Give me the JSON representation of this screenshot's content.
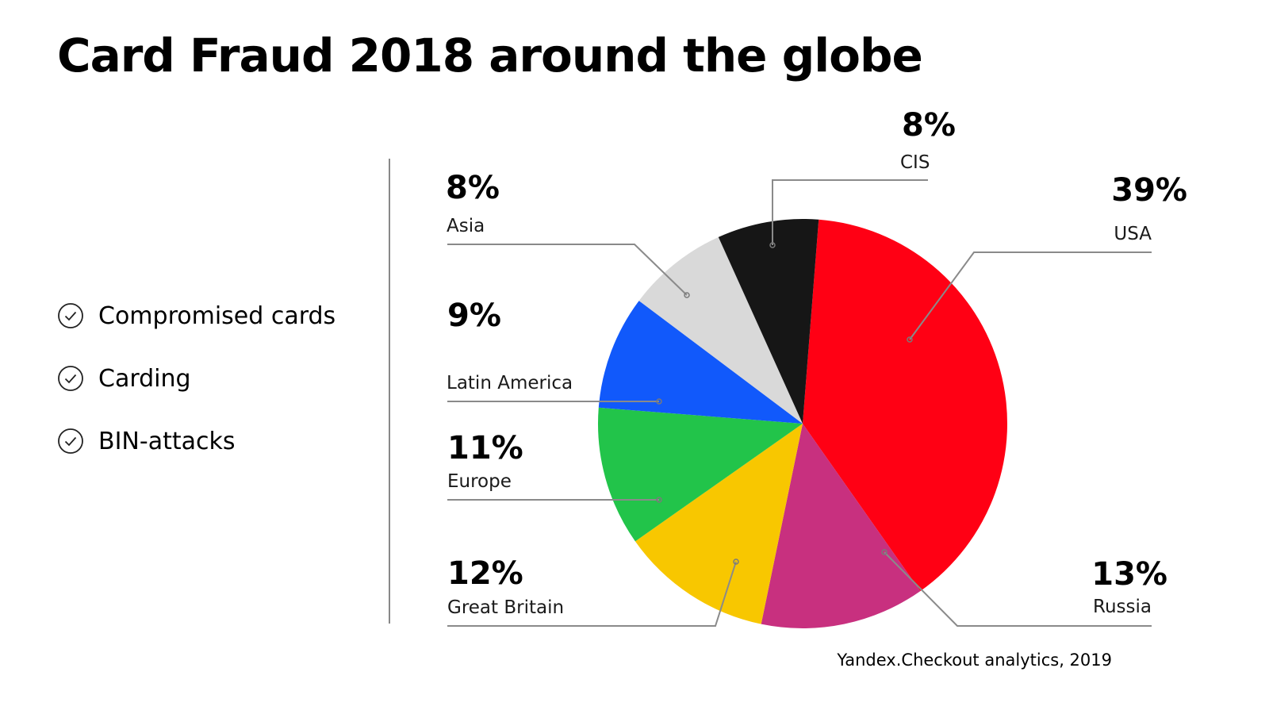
{
  "title": "Card Fraud 2018 around the globe",
  "bullets": [
    {
      "label": "Compromised cards",
      "icon": "check-circle-icon"
    },
    {
      "label": "Carding",
      "icon": "check-circle-icon"
    },
    {
      "label": "BIN-attacks",
      "icon": "check-circle-icon"
    }
  ],
  "source": "Yandex.Checkout analytics, 2019",
  "chart_data": {
    "type": "pie",
    "slices": [
      {
        "name": "USA",
        "value": 39,
        "label": "39%",
        "color": "#ff0014"
      },
      {
        "name": "Russia",
        "value": 13,
        "label": "13%",
        "color": "#c8307f"
      },
      {
        "name": "Great Britain",
        "value": 12,
        "label": "12%",
        "color": "#f8c700"
      },
      {
        "name": "Europe",
        "value": 11,
        "label": "11%",
        "color": "#22c44a"
      },
      {
        "name": "Latin America",
        "value": 9,
        "label": "9%",
        "color": "#1159fb"
      },
      {
        "name": "Asia",
        "value": 8,
        "label": "8%",
        "color": "#d9d9d9"
      },
      {
        "name": "CIS",
        "value": 8,
        "label": "8%",
        "color": "#161616"
      }
    ]
  }
}
